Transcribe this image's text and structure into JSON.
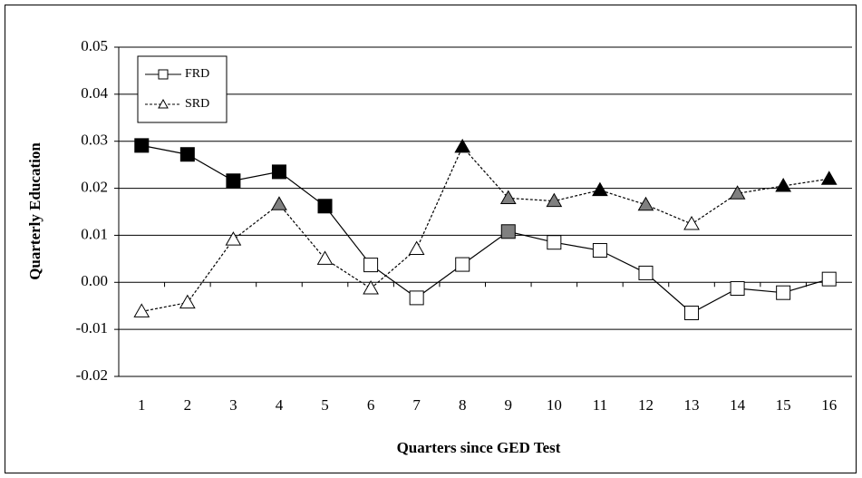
{
  "chart_data": {
    "type": "line",
    "x_label": "Quarters since GED Test",
    "y_label": "Quarterly Education",
    "categories": [
      "1",
      "2",
      "3",
      "4",
      "5",
      "6",
      "7",
      "8",
      "9",
      "10",
      "11",
      "12",
      "13",
      "14",
      "15",
      "16"
    ],
    "ylim": [
      -0.02,
      0.05
    ],
    "yticks": [
      -0.02,
      -0.01,
      {
        "value": 0,
        "label": "0.00"
      },
      0.01,
      0.02,
      0.03,
      0.04,
      0.05
    ],
    "grid": true,
    "legend": "upper left",
    "series": [
      {
        "name": "FRD",
        "color": "#000000",
        "line_style": "solid",
        "marker": "square",
        "values": [
          0.0291,
          0.0272,
          0.0216,
          0.0235,
          0.0162,
          0.0037,
          -0.0033,
          0.0038,
          0.0108,
          0.0085,
          0.0068,
          0.002,
          -0.0065,
          -0.0013,
          -0.0022,
          0.0007
        ],
        "marker_fills": [
          "#000000",
          "#000000",
          "#000000",
          "#000000",
          "#000000",
          "#ffffff",
          "#ffffff",
          "#ffffff",
          "#808080",
          "#ffffff",
          "#ffffff",
          "#ffffff",
          "#ffffff",
          "#ffffff",
          "#ffffff",
          "#ffffff"
        ]
      },
      {
        "name": "SRD",
        "color": "#000000",
        "line_style": "dashed",
        "marker": "triangle",
        "values": [
          -0.0062,
          -0.0043,
          0.0091,
          0.0166,
          0.005,
          -0.0013,
          0.0071,
          0.0288,
          0.0179,
          0.0173,
          0.0196,
          0.0165,
          0.0124,
          0.0189,
          0.0205,
          0.022
        ],
        "marker_fills": [
          "#ffffff",
          "#ffffff",
          "#ffffff",
          "#808080",
          "#ffffff",
          "#ffffff",
          "#ffffff",
          "#000000",
          "#808080",
          "#808080",
          "#000000",
          "#808080",
          "#ffffff",
          "#808080",
          "#000000",
          "#000000"
        ]
      }
    ]
  }
}
